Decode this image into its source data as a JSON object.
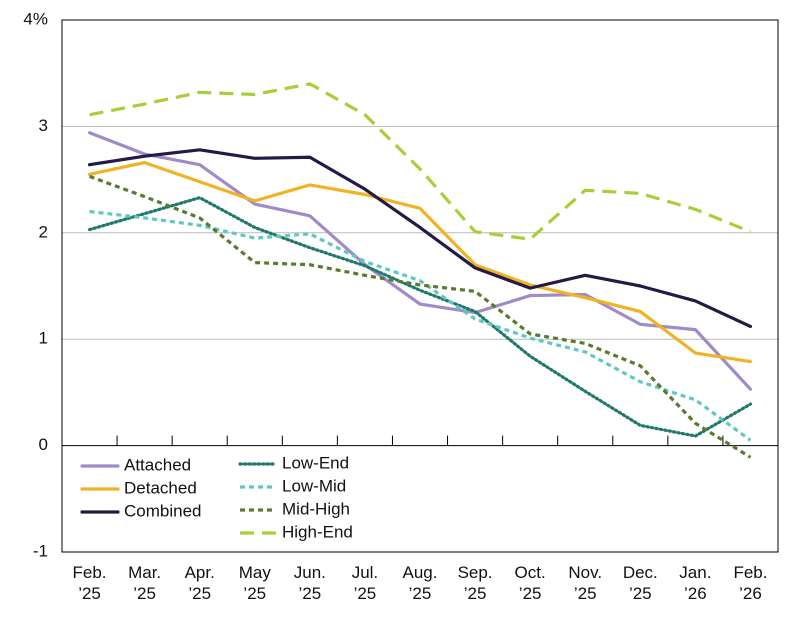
{
  "chart_data": {
    "type": "line",
    "categories": [
      "Feb.\n’25",
      "Mar.\n’25",
      "Apr.\n’25",
      "May\n’25",
      "Jun.\n’25",
      "Jul.\n’25",
      "Aug.\n’25",
      "Sep.\n’25",
      "Oct.\n’25",
      "Nov.\n’25",
      "Dec.\n’25",
      "Jan.\n’26",
      "Feb.\n’26"
    ],
    "series": [
      {
        "name": "Attached",
        "color": "#a08bc8",
        "dash": "solid",
        "values": [
          2.94,
          2.74,
          2.64,
          2.27,
          2.16,
          1.7,
          1.33,
          1.25,
          1.41,
          1.42,
          1.14,
          1.09,
          0.53
        ]
      },
      {
        "name": "Detached",
        "color": "#f0b323",
        "dash": "solid",
        "values": [
          2.55,
          2.66,
          2.48,
          2.3,
          2.45,
          2.36,
          2.23,
          1.7,
          1.51,
          1.39,
          1.26,
          0.87,
          0.79
        ]
      },
      {
        "name": "Combined",
        "color": "#241a46",
        "dash": "solid",
        "values": [
          2.64,
          2.72,
          2.78,
          2.7,
          2.71,
          2.41,
          2.05,
          1.67,
          1.48,
          1.6,
          1.5,
          1.36,
          1.12
        ]
      },
      {
        "name": "Low-End",
        "color": "#1f7a6b",
        "dash": "dotted",
        "values": [
          2.03,
          2.18,
          2.33,
          2.05,
          1.86,
          1.69,
          1.46,
          1.26,
          0.84,
          0.51,
          0.19,
          0.09,
          0.39
        ]
      },
      {
        "name": "Low-Mid",
        "color": "#5fc9c0",
        "dash": "dashed",
        "values": [
          2.2,
          2.14,
          2.07,
          1.95,
          1.99,
          1.73,
          1.55,
          1.19,
          1.01,
          0.88,
          0.6,
          0.43,
          0.05
        ]
      },
      {
        "name": "Mid-High",
        "color": "#5b7a2e",
        "dash": "dashed",
        "values": [
          2.53,
          2.34,
          2.14,
          1.72,
          1.7,
          1.6,
          1.51,
          1.45,
          1.05,
          0.96,
          0.75,
          0.21,
          -0.11
        ]
      },
      {
        "name": "High-End",
        "color": "#a8cf38",
        "dash": "long-dashed",
        "values": [
          3.11,
          3.21,
          3.32,
          3.3,
          3.4,
          3.11,
          2.6,
          2.01,
          1.94,
          2.4,
          2.37,
          2.22,
          2.01
        ]
      }
    ],
    "ylim": [
      -1,
      4
    ],
    "yticks": [
      -1,
      0,
      1,
      2,
      3,
      {
        "value": 4,
        "label": "4%"
      }
    ],
    "grid": true,
    "legend": "lower-left"
  }
}
